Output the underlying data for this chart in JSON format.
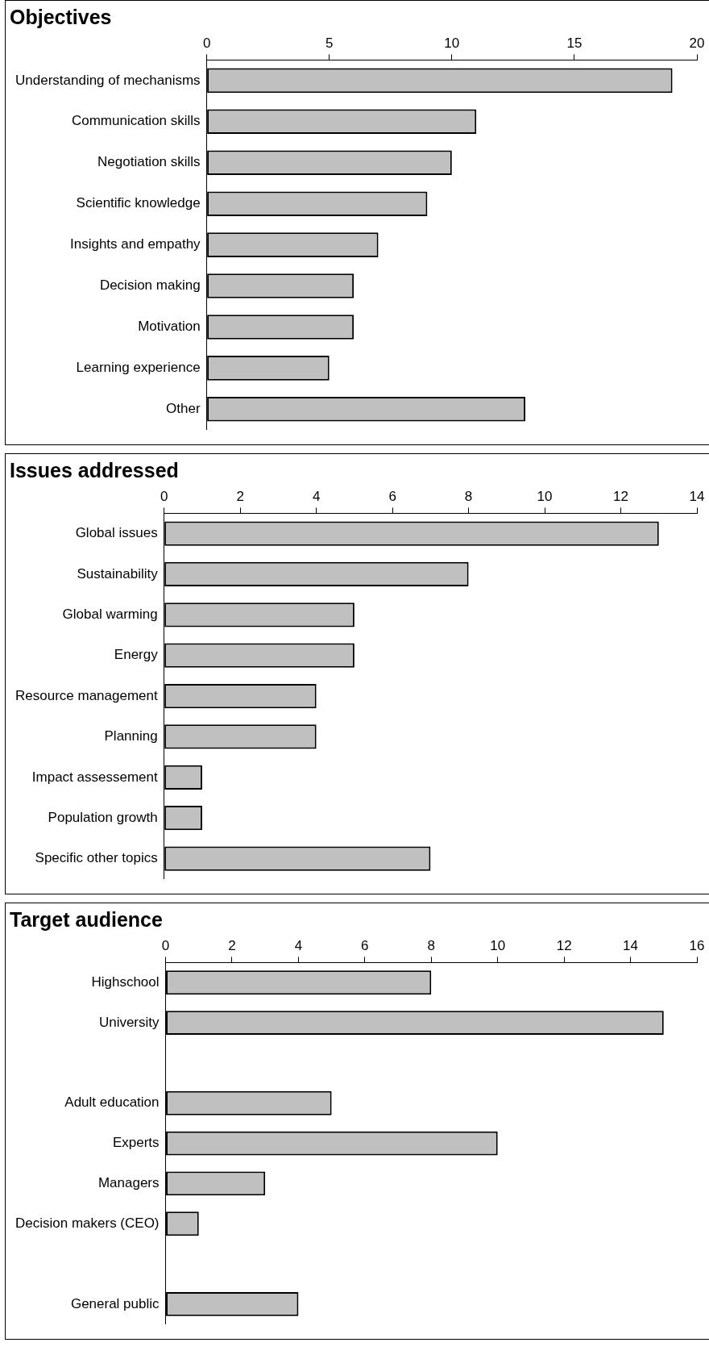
{
  "chart_data": [
    {
      "type": "bar",
      "orientation": "horizontal",
      "title": "Objectives",
      "categories": [
        "Understanding of mechanisms",
        "Communication skills",
        "Negotiation skills",
        "Scientific knowledge",
        "Insights and empathy",
        "Decision making",
        "Motivation",
        "Learning experience",
        "Other"
      ],
      "values": [
        19,
        11,
        10,
        9,
        7,
        6,
        6,
        5,
        13
      ],
      "color": "#c0c0c0",
      "xlim": [
        0,
        20
      ],
      "xticks": [
        0,
        5,
        10,
        15,
        20
      ]
    },
    {
      "type": "bar",
      "orientation": "horizontal",
      "title": "Issues addressed",
      "categories": [
        "Global issues",
        "Sustainability",
        "Global warming",
        "Energy",
        "Resource management",
        "Planning",
        "Impact assessement",
        "Population growth",
        "Specific other topics"
      ],
      "values": [
        13,
        8,
        5,
        5,
        4,
        4,
        1,
        1,
        7
      ],
      "color": "#c0c0c0",
      "xlim": [
        0,
        14
      ],
      "xticks": [
        0,
        2,
        4,
        6,
        8,
        10,
        12,
        14
      ]
    },
    {
      "type": "bar",
      "orientation": "horizontal",
      "title": "Target audience",
      "categories": [
        "Highschool",
        "University",
        null,
        "Adult education",
        "Experts",
        "Managers",
        "Decision makers (CEO)",
        null,
        "General public"
      ],
      "values": [
        8,
        15,
        null,
        5,
        10,
        3,
        1,
        null,
        4
      ],
      "color": "#c0c0c0",
      "xlim": [
        0,
        16
      ],
      "xticks": [
        0,
        2,
        4,
        6,
        8,
        10,
        12,
        14,
        16
      ]
    }
  ]
}
